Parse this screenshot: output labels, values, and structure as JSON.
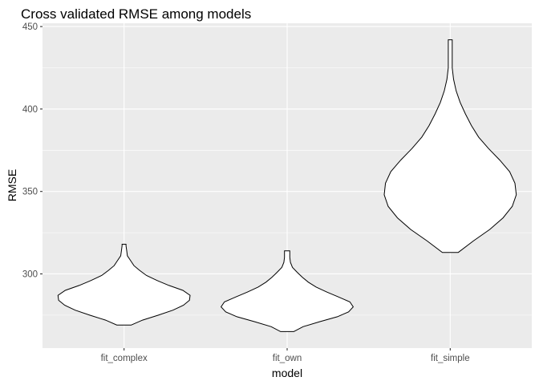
{
  "chart_data": {
    "type": "violin",
    "title": "Cross validated RMSE among models",
    "xlabel": "model",
    "ylabel": "RMSE",
    "categories": [
      "fit_complex",
      "fit_own",
      "fit_simple"
    ],
    "ylim": [
      255,
      452
    ],
    "y_ticks": [
      300,
      350,
      400,
      450
    ],
    "y_tick_labels": [
      "300",
      "350",
      "400",
      "450"
    ],
    "grid": true,
    "background": "#ebebeb",
    "violin_fill": "#ffffff",
    "violin_outline": "#000000",
    "series": [
      {
        "category": "fit_complex",
        "ymin": 269,
        "ymax": 318,
        "density": [
          [
            269,
            0.11
          ],
          [
            272,
            0.28
          ],
          [
            275,
            0.52
          ],
          [
            278,
            0.74
          ],
          [
            281,
            0.9
          ],
          [
            284,
            0.99
          ],
          [
            287,
            1.0
          ],
          [
            290,
            0.89
          ],
          [
            293,
            0.68
          ],
          [
            296,
            0.5
          ],
          [
            299,
            0.34
          ],
          [
            302,
            0.24
          ],
          [
            305,
            0.15
          ],
          [
            308,
            0.1
          ],
          [
            311,
            0.05
          ],
          [
            314,
            0.04
          ],
          [
            317,
            0.03
          ],
          [
            318,
            0.03
          ]
        ]
      },
      {
        "category": "fit_own",
        "ymin": 265,
        "ymax": 314,
        "density": [
          [
            265,
            0.1
          ],
          [
            268,
            0.24
          ],
          [
            271,
            0.49
          ],
          [
            274,
            0.76
          ],
          [
            277,
            0.93
          ],
          [
            280,
            1.0
          ],
          [
            283,
            0.95
          ],
          [
            286,
            0.78
          ],
          [
            289,
            0.6
          ],
          [
            292,
            0.44
          ],
          [
            295,
            0.32
          ],
          [
            298,
            0.23
          ],
          [
            301,
            0.15
          ],
          [
            304,
            0.08
          ],
          [
            307,
            0.05
          ],
          [
            310,
            0.04
          ],
          [
            313,
            0.04
          ],
          [
            314,
            0.04
          ]
        ]
      },
      {
        "category": "fit_simple",
        "ymin": 313,
        "ymax": 442,
        "density": [
          [
            313,
            0.12
          ],
          [
            320,
            0.35
          ],
          [
            327,
            0.6
          ],
          [
            334,
            0.8
          ],
          [
            341,
            0.94
          ],
          [
            348,
            1.0
          ],
          [
            355,
            0.98
          ],
          [
            362,
            0.9
          ],
          [
            369,
            0.75
          ],
          [
            376,
            0.58
          ],
          [
            383,
            0.43
          ],
          [
            390,
            0.32
          ],
          [
            397,
            0.23
          ],
          [
            404,
            0.15
          ],
          [
            411,
            0.09
          ],
          [
            418,
            0.05
          ],
          [
            425,
            0.03
          ],
          [
            432,
            0.03
          ],
          [
            438,
            0.03
          ],
          [
            442,
            0.03
          ]
        ]
      }
    ]
  }
}
